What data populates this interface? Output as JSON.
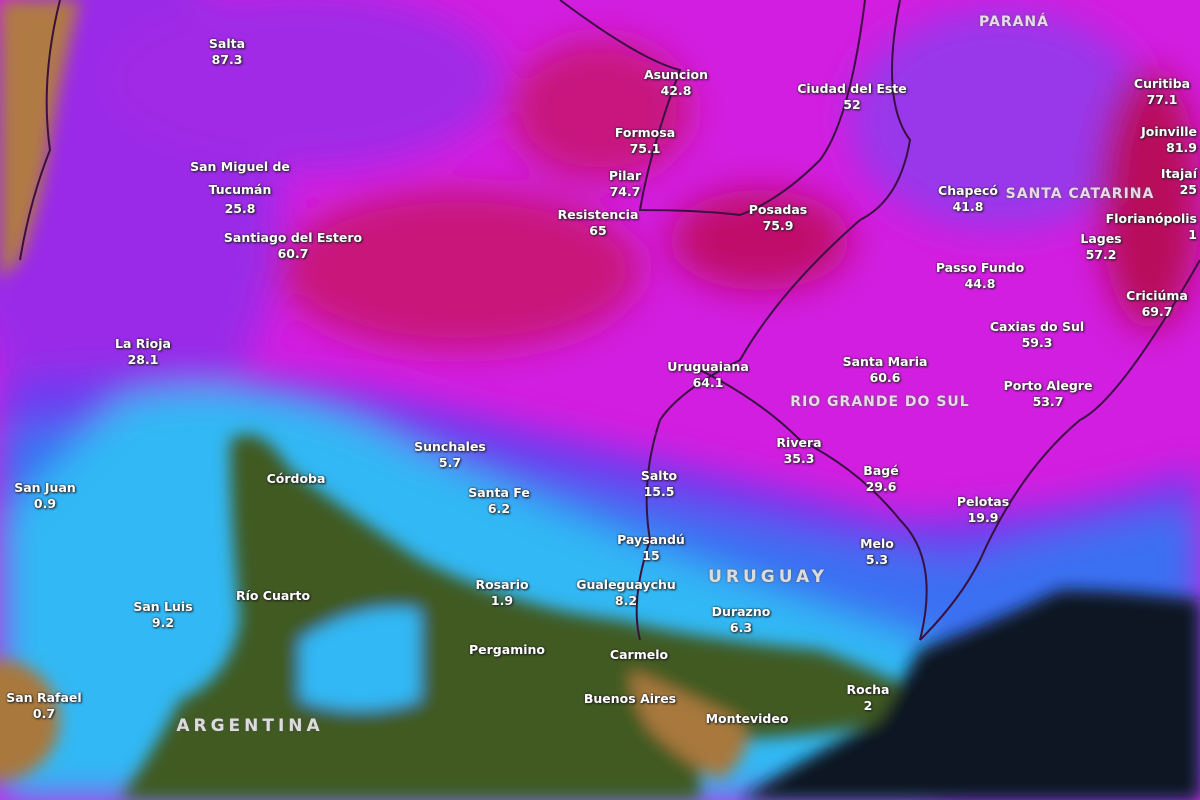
{
  "map": {
    "colors": {
      "heavy": "#c0105a",
      "high": "#e01ee6",
      "medium": "#8a2ce8",
      "low": "#3a6cf0",
      "light": "#2ec8f5",
      "land": "#3f5a22",
      "ocean": "#0b1420",
      "estuary": "#a8783c",
      "mountains": "#b07a45"
    },
    "regions": [
      "PARANÁ",
      "SANTA CATARINA",
      "RIO GRANDE DO SUL",
      "URUGUAY",
      "ARGENTINA"
    ],
    "cities": [
      {
        "name": "Salta",
        "value": "87.3"
      },
      {
        "name": "San Miguel de Tucumán",
        "value": "25.8"
      },
      {
        "name": "Santiago del Estero",
        "value": "60.7"
      },
      {
        "name": "La Rioja",
        "value": "28.1"
      },
      {
        "name": "San Juan",
        "value": "0.9"
      },
      {
        "name": "San Luis",
        "value": "9.2"
      },
      {
        "name": "San Rafael",
        "value": "0.7"
      },
      {
        "name": "Córdoba",
        "value": null
      },
      {
        "name": "Río Cuarto",
        "value": null
      },
      {
        "name": "Sunchales",
        "value": "5.7"
      },
      {
        "name": "Santa Fe",
        "value": "6.2"
      },
      {
        "name": "Rosario",
        "value": "1.9"
      },
      {
        "name": "Pergamino",
        "value": null
      },
      {
        "name": "Gualeguaychu",
        "value": "8.2"
      },
      {
        "name": "Carmelo",
        "value": null
      },
      {
        "name": "Buenos Aires",
        "value": null
      },
      {
        "name": "Montevideo",
        "value": null
      },
      {
        "name": "Paysandú",
        "value": "15"
      },
      {
        "name": "Salto",
        "value": "15.5"
      },
      {
        "name": "Durazno",
        "value": "6.3"
      },
      {
        "name": "Rocha",
        "value": "2"
      },
      {
        "name": "Melo",
        "value": "5.3"
      },
      {
        "name": "Bagé",
        "value": "29.6"
      },
      {
        "name": "Rivera",
        "value": "35.3"
      },
      {
        "name": "Pelotas",
        "value": "19.9"
      },
      {
        "name": "Uruguaiana",
        "value": "64.1"
      },
      {
        "name": "Santa Maria",
        "value": "60.6"
      },
      {
        "name": "Porto Alegre",
        "value": "53.7"
      },
      {
        "name": "Caxias do Sul",
        "value": "59.3"
      },
      {
        "name": "Passo Fundo",
        "value": "44.8"
      },
      {
        "name": "Criciúma",
        "value": "69.7"
      },
      {
        "name": "Lages",
        "value": "57.2"
      },
      {
        "name": "Chapecó",
        "value": "41.8"
      },
      {
        "name": "Florianópolis",
        "value": "1"
      },
      {
        "name": "Itajaí",
        "value": "25"
      },
      {
        "name": "Joinville",
        "value": "81.9"
      },
      {
        "name": "Curitiba",
        "value": "77.1"
      },
      {
        "name": "Ciudad del Este",
        "value": "52"
      },
      {
        "name": "Asuncion",
        "value": "42.8"
      },
      {
        "name": "Formosa",
        "value": "75.1"
      },
      {
        "name": "Pilar",
        "value": "74.7"
      },
      {
        "name": "Resistencia",
        "value": "65"
      },
      {
        "name": "Posadas",
        "value": "75.9"
      }
    ]
  }
}
